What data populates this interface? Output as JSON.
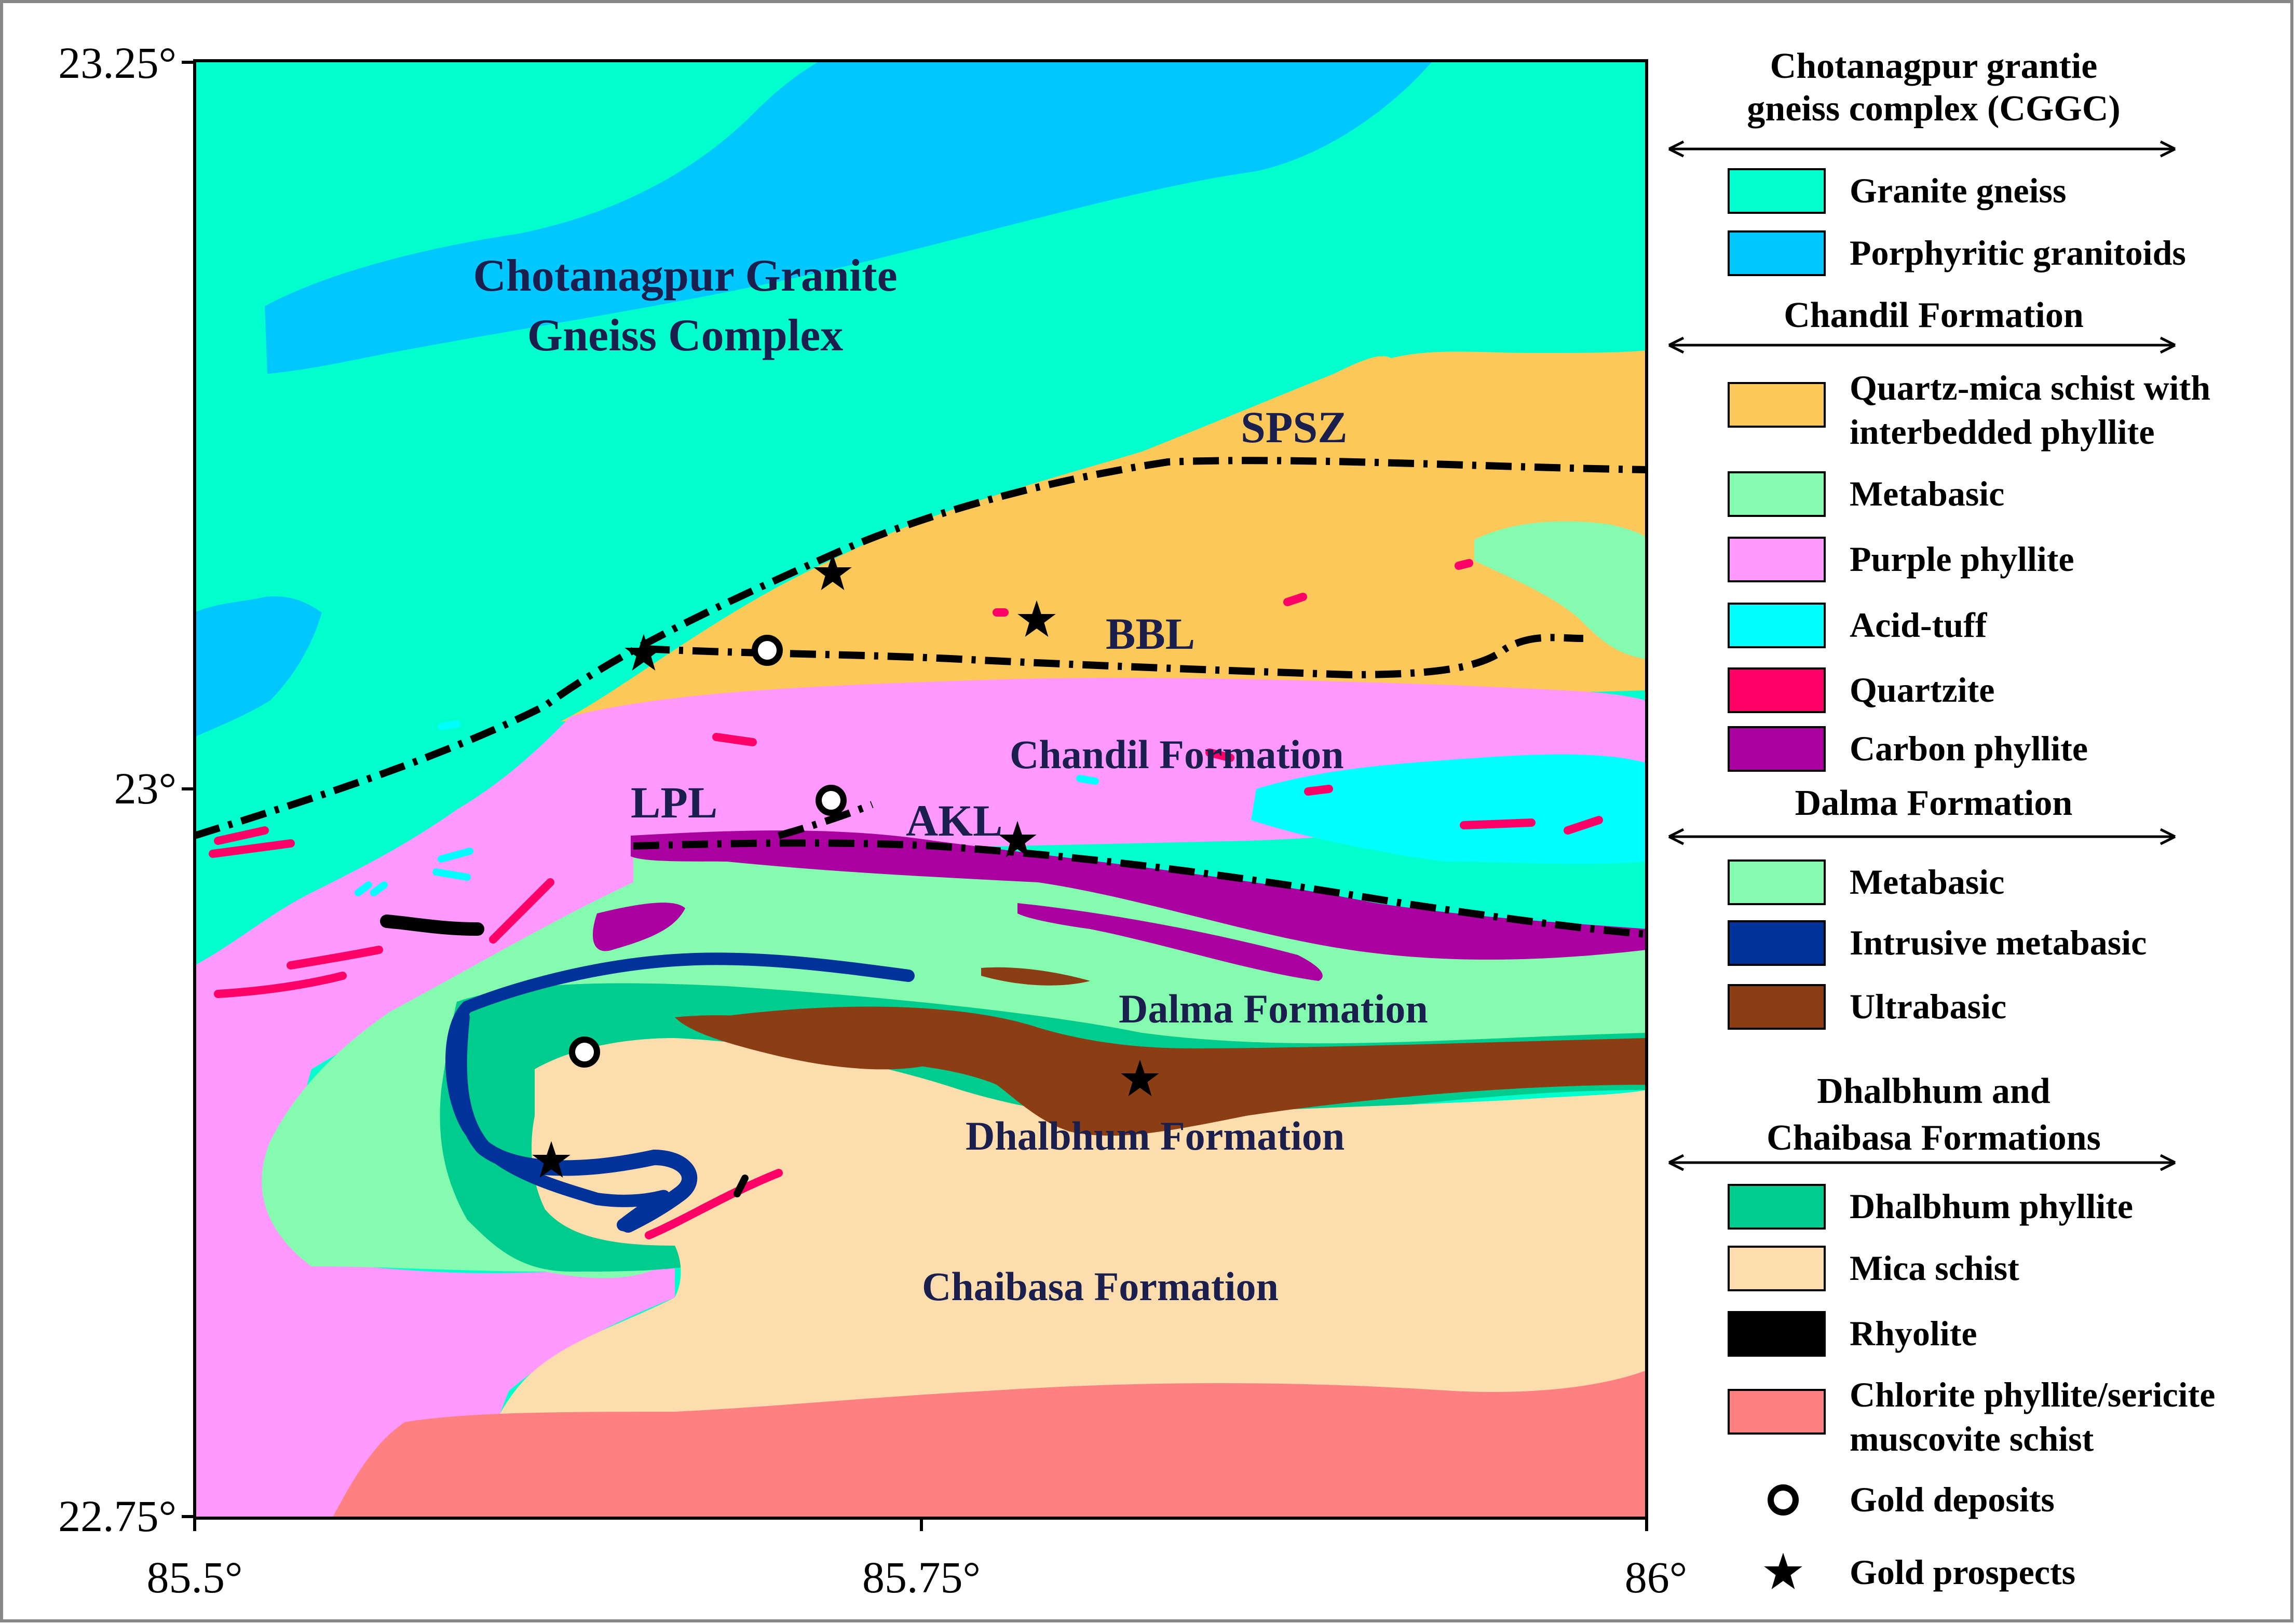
{
  "map": {
    "region_label_line1": "Chotanagpur Granite",
    "region_label_line2": "Gneiss Complex",
    "formation_labels": {
      "chandil": "Chandil Formation",
      "dalma": "Dalma Formation",
      "dhalbhum": "Dhalbhum Formation",
      "chaibasa": "Chaibasa Formation"
    },
    "fault_labels": {
      "spsz": "SPSZ",
      "bbl": "BBL",
      "lpl": "LPL",
      "akl": "AKL"
    },
    "axes": {
      "x_ticks": [
        "85.5°",
        "85.75°",
        "86°"
      ],
      "y_ticks": [
        "23.25°",
        "23°",
        "22.75°"
      ]
    }
  },
  "legend": {
    "groups": [
      {
        "heading_line1": "Chotanagpur grantie",
        "heading_line2": "gneiss complex (CGGC)",
        "items": [
          {
            "label": "Granite gneiss",
            "color": "#00ffcc"
          },
          {
            "label": "Porphyritic granitoids",
            "color": "#00c8ff"
          }
        ]
      },
      {
        "heading_line1": "Chandil Formation",
        "items": [
          {
            "label_line1": "Quartz-mica schist with",
            "label_line2": "interbedded phyllite",
            "color": "#fdc85a"
          },
          {
            "label": "Metabasic",
            "color": "#85fbb0"
          },
          {
            "label": "Purple phyllite",
            "color": "#ff99ff"
          },
          {
            "label": "Acid-tuff",
            "color": "#00ffff"
          },
          {
            "label": "Quartzite",
            "color": "#ff0066"
          },
          {
            "label": "Carbon phyllite",
            "color": "#aa00a0"
          }
        ]
      },
      {
        "heading_line1": "Dalma Formation",
        "items": [
          {
            "label": "Metabasic",
            "color": "#85fbb0"
          },
          {
            "label": "Intrusive metabasic",
            "color": "#003399"
          },
          {
            "label": "Ultrabasic",
            "color": "#8b3e14"
          }
        ]
      },
      {
        "heading_line1": "Dhalbhum and",
        "heading_line2": "Chaibasa Formations",
        "items": [
          {
            "label": "Dhalbhum phyllite",
            "color": "#00cc8e"
          },
          {
            "label": "Mica schist",
            "color": "#fddcad"
          },
          {
            "label": "Rhyolite",
            "color": "#000000"
          },
          {
            "label_line1": "Chlorite phyllite/sericite",
            "label_line2": "muscovite schist",
            "color": "#fe8080"
          }
        ]
      }
    ],
    "symbols": {
      "deposits": "Gold deposits",
      "prospects": "Gold prospects"
    }
  }
}
